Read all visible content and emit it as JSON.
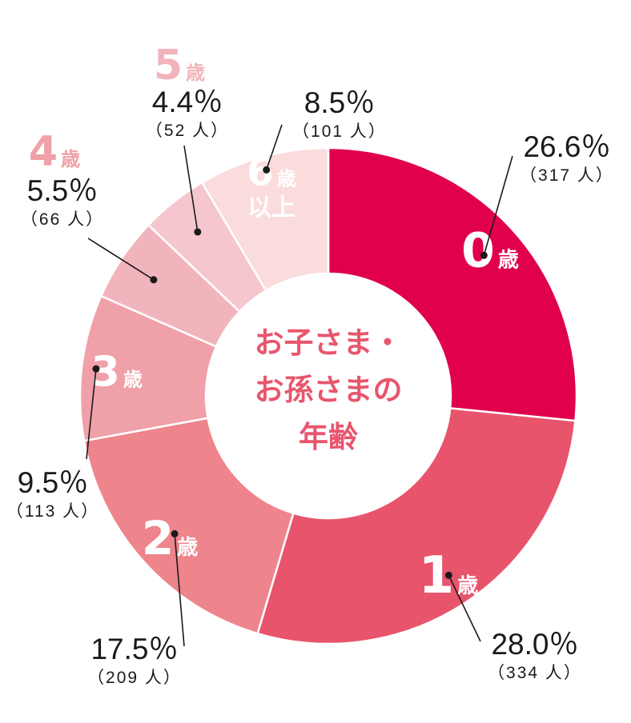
{
  "chart_data": {
    "type": "pie",
    "title": "お子さま・お孫さまの年齢",
    "center_lines": [
      "お子さま・",
      "お孫さまの",
      "年齢"
    ],
    "unit_suffix": "歳",
    "count_unit": "人",
    "segments": [
      {
        "label_num": "0",
        "label_unit": "歳",
        "percent": 26.6,
        "percent_label": "26.6％",
        "count_label": "（317 人）",
        "color": "#e0004e"
      },
      {
        "label_num": "1",
        "label_unit": "歳",
        "percent": 28.0,
        "percent_label": "28.0％",
        "count_label": "（334 人）",
        "color": "#e8546c"
      },
      {
        "label_num": "2",
        "label_unit": "歳",
        "percent": 17.5,
        "percent_label": "17.5％",
        "count_label": "（209 人）",
        "color": "#ee848c"
      },
      {
        "label_num": "3",
        "label_unit": "歳",
        "percent": 9.5,
        "percent_label": "9.5％",
        "count_label": "（113 人）",
        "color": "#f0a0a8"
      },
      {
        "label_num": "4",
        "label_unit": "歳",
        "percent": 5.5,
        "percent_label": "5.5％",
        "count_label": "（66 人）",
        "color": "#f2b4bc"
      },
      {
        "label_num": "5",
        "label_unit": "歳",
        "percent": 4.4,
        "percent_label": "4.4％",
        "count_label": "（52 人）",
        "color": "#f6c6ce"
      },
      {
        "label_num": "6",
        "label_unit": "歳",
        "label_extra": "以上",
        "percent": 8.5,
        "percent_label": "8.5％",
        "count_label": "（101 人）",
        "color": "#fadcdc"
      }
    ]
  }
}
